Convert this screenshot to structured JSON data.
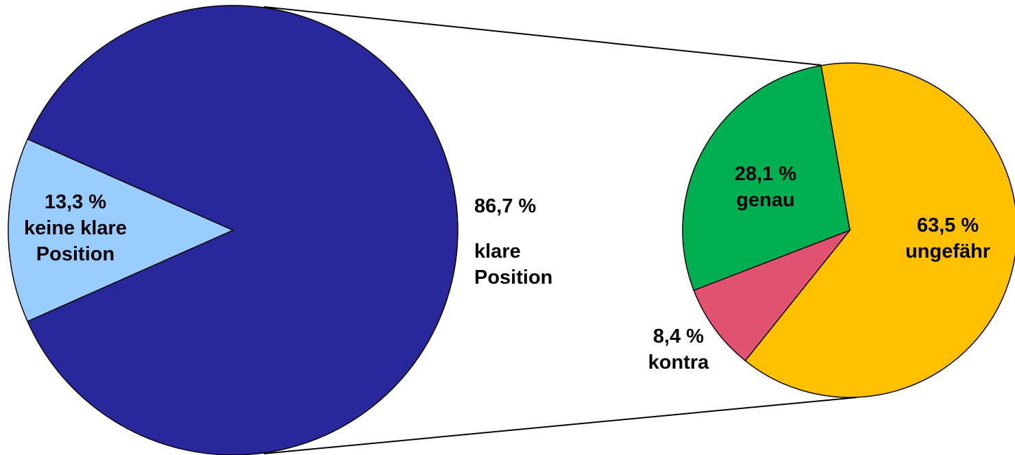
{
  "chart_data": [
    {
      "type": "pie",
      "categories": [
        "keine klare Position",
        "klare Position"
      ],
      "values": [
        13.3,
        86.7
      ],
      "value_labels": [
        "13,3 %",
        "86,7 %"
      ],
      "colors": [
        "#99ccff",
        "#29289a"
      ]
    },
    {
      "type": "pie",
      "categories": [
        "ungefähr",
        "kontra",
        "genau"
      ],
      "values": [
        63.5,
        8.4,
        28.1
      ],
      "value_labels": [
        "63,5 %",
        "8,4 %",
        "28,1 %"
      ],
      "colors": [
        "#ffc000",
        "#e15272",
        "#00b050"
      ]
    }
  ]
}
